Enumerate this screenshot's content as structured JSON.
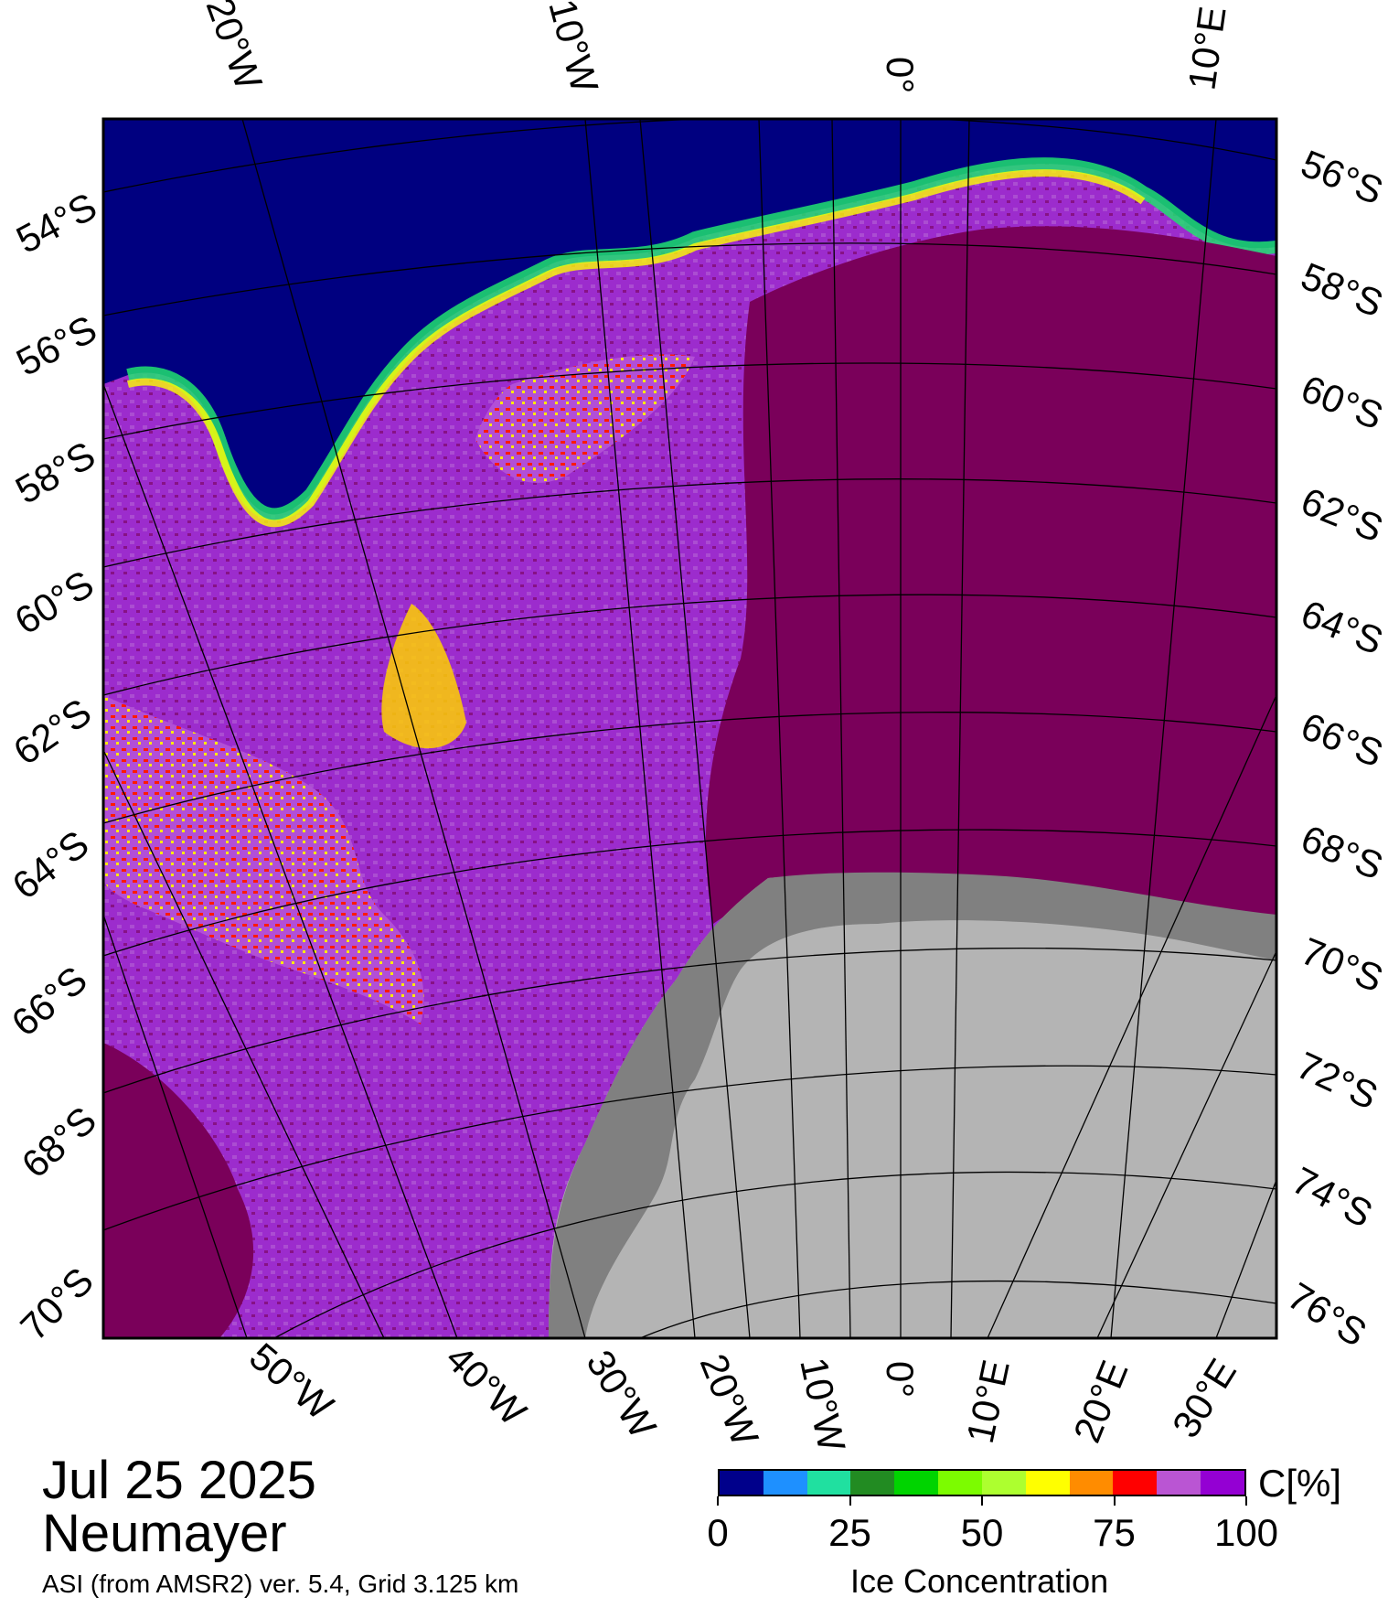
{
  "map": {
    "date": "Jul 25 2025",
    "region": "Neumayer",
    "product": "ASI (from AMSR2) ver. 5.4,  Grid 3.125 km",
    "lon_labels_top": [
      "20°W",
      "10°W",
      "0°",
      "10°E"
    ],
    "lat_labels_right": [
      "56°S",
      "58°S",
      "60°S",
      "62°S",
      "64°S",
      "66°S",
      "68°S",
      "70°S",
      "72°S",
      "74°S",
      "76°S"
    ],
    "lat_labels_left": [
      "54°S",
      "56°S",
      "58°S",
      "60°S",
      "62°S",
      "64°S",
      "66°S",
      "68°S",
      "70°S"
    ],
    "lon_labels_bottom": [
      "50°W",
      "40°W",
      "30°W",
      "20°W",
      "10°W",
      "0°",
      "10°E",
      "20°E",
      "30°E"
    ]
  },
  "colorbar": {
    "unit": "C[%]",
    "title": "Ice Concentration",
    "tick_values": [
      "0",
      "25",
      "50",
      "75",
      "100"
    ],
    "colors": [
      "#00008b",
      "#1e90ff",
      "#20e0a0",
      "#228b22",
      "#00d400",
      "#7cfc00",
      "#adff2f",
      "#ffff00",
      "#ff8c00",
      "#ff0000",
      "#ba55d3",
      "#9400d3"
    ]
  },
  "legend_colors": {
    "open_water": "#000080",
    "full_ice": "#7a005a",
    "land_ice": "#b4b4b4",
    "ice_shelf": "#808080"
  }
}
